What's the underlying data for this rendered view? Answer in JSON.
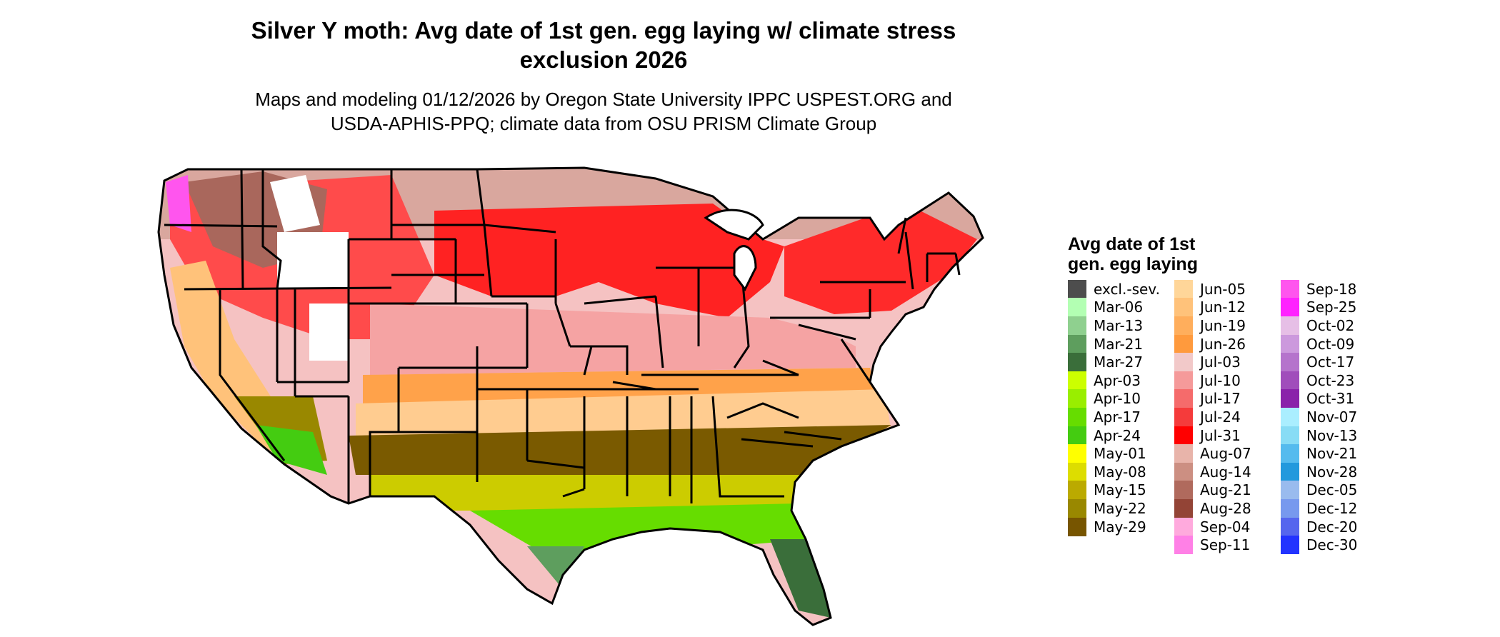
{
  "title_line1": "Silver Y moth: Avg date of 1st gen. egg laying w/ climate stress",
  "title_line2": "exclusion 2026",
  "subtitle_line1": "Maps and modeling 01/12/2026 by Oregon State University IPPC USPEST.ORG and",
  "subtitle_line2": "USDA-APHIS-PPQ; climate data from OSU PRISM Climate Group",
  "legend": {
    "title_line1": "Avg date of 1st",
    "title_line2": "gen. egg laying",
    "items": [
      {
        "label": "excl.-sev.",
        "color": "#4d4d4d"
      },
      {
        "label": "Mar-06",
        "color": "#b3ffb3"
      },
      {
        "label": "Mar-13",
        "color": "#8fd08f"
      },
      {
        "label": "Mar-21",
        "color": "#5e9e5e"
      },
      {
        "label": "Mar-27",
        "color": "#3a6e3a"
      },
      {
        "label": "Apr-03",
        "color": "#ccff00"
      },
      {
        "label": "Apr-10",
        "color": "#99ee00"
      },
      {
        "label": "Apr-17",
        "color": "#66dd00"
      },
      {
        "label": "Apr-24",
        "color": "#44cc11"
      },
      {
        "label": "May-01",
        "color": "#ffff00"
      },
      {
        "label": "May-08",
        "color": "#dddd00"
      },
      {
        "label": "May-15",
        "color": "#bbaa00"
      },
      {
        "label": "May-22",
        "color": "#998800"
      },
      {
        "label": "May-29",
        "color": "#775500"
      },
      {
        "label": "Jun-05",
        "color": "#ffd699"
      },
      {
        "label": "Jun-12",
        "color": "#ffc27a"
      },
      {
        "label": "Jun-19",
        "color": "#ffae5c"
      },
      {
        "label": "Jun-26",
        "color": "#ff9a3d"
      },
      {
        "label": "Jul-03",
        "color": "#f2c9c9"
      },
      {
        "label": "Jul-10",
        "color": "#f59a9a"
      },
      {
        "label": "Jul-17",
        "color": "#f56b6b"
      },
      {
        "label": "Jul-24",
        "color": "#f53b3b"
      },
      {
        "label": "Jul-31",
        "color": "#ff0000"
      },
      {
        "label": "Aug-07",
        "color": "#e8b4aa"
      },
      {
        "label": "Aug-14",
        "color": "#cc8f82"
      },
      {
        "label": "Aug-21",
        "color": "#b06a5d"
      },
      {
        "label": "Aug-28",
        "color": "#934436"
      },
      {
        "label": "Sep-04",
        "color": "#ffaadd"
      },
      {
        "label": "Sep-11",
        "color": "#ff80e6"
      },
      {
        "label": "Sep-18",
        "color": "#ff55ee"
      },
      {
        "label": "Sep-25",
        "color": "#ff22ff"
      },
      {
        "label": "Oct-02",
        "color": "#e6bfe6"
      },
      {
        "label": "Oct-09",
        "color": "#cc99dd"
      },
      {
        "label": "Oct-17",
        "color": "#b573cc"
      },
      {
        "label": "Oct-23",
        "color": "#a04dbb"
      },
      {
        "label": "Oct-31",
        "color": "#8a22aa"
      },
      {
        "label": "Nov-07",
        "color": "#aaeeff"
      },
      {
        "label": "Nov-13",
        "color": "#88dcf5"
      },
      {
        "label": "Nov-21",
        "color": "#55bbee"
      },
      {
        "label": "Nov-28",
        "color": "#2299dd"
      },
      {
        "label": "Dec-05",
        "color": "#99bbee"
      },
      {
        "label": "Dec-12",
        "color": "#7799ee"
      },
      {
        "label": "Dec-20",
        "color": "#5566ee"
      },
      {
        "label": "Dec-30",
        "color": "#2233ff"
      }
    ]
  }
}
